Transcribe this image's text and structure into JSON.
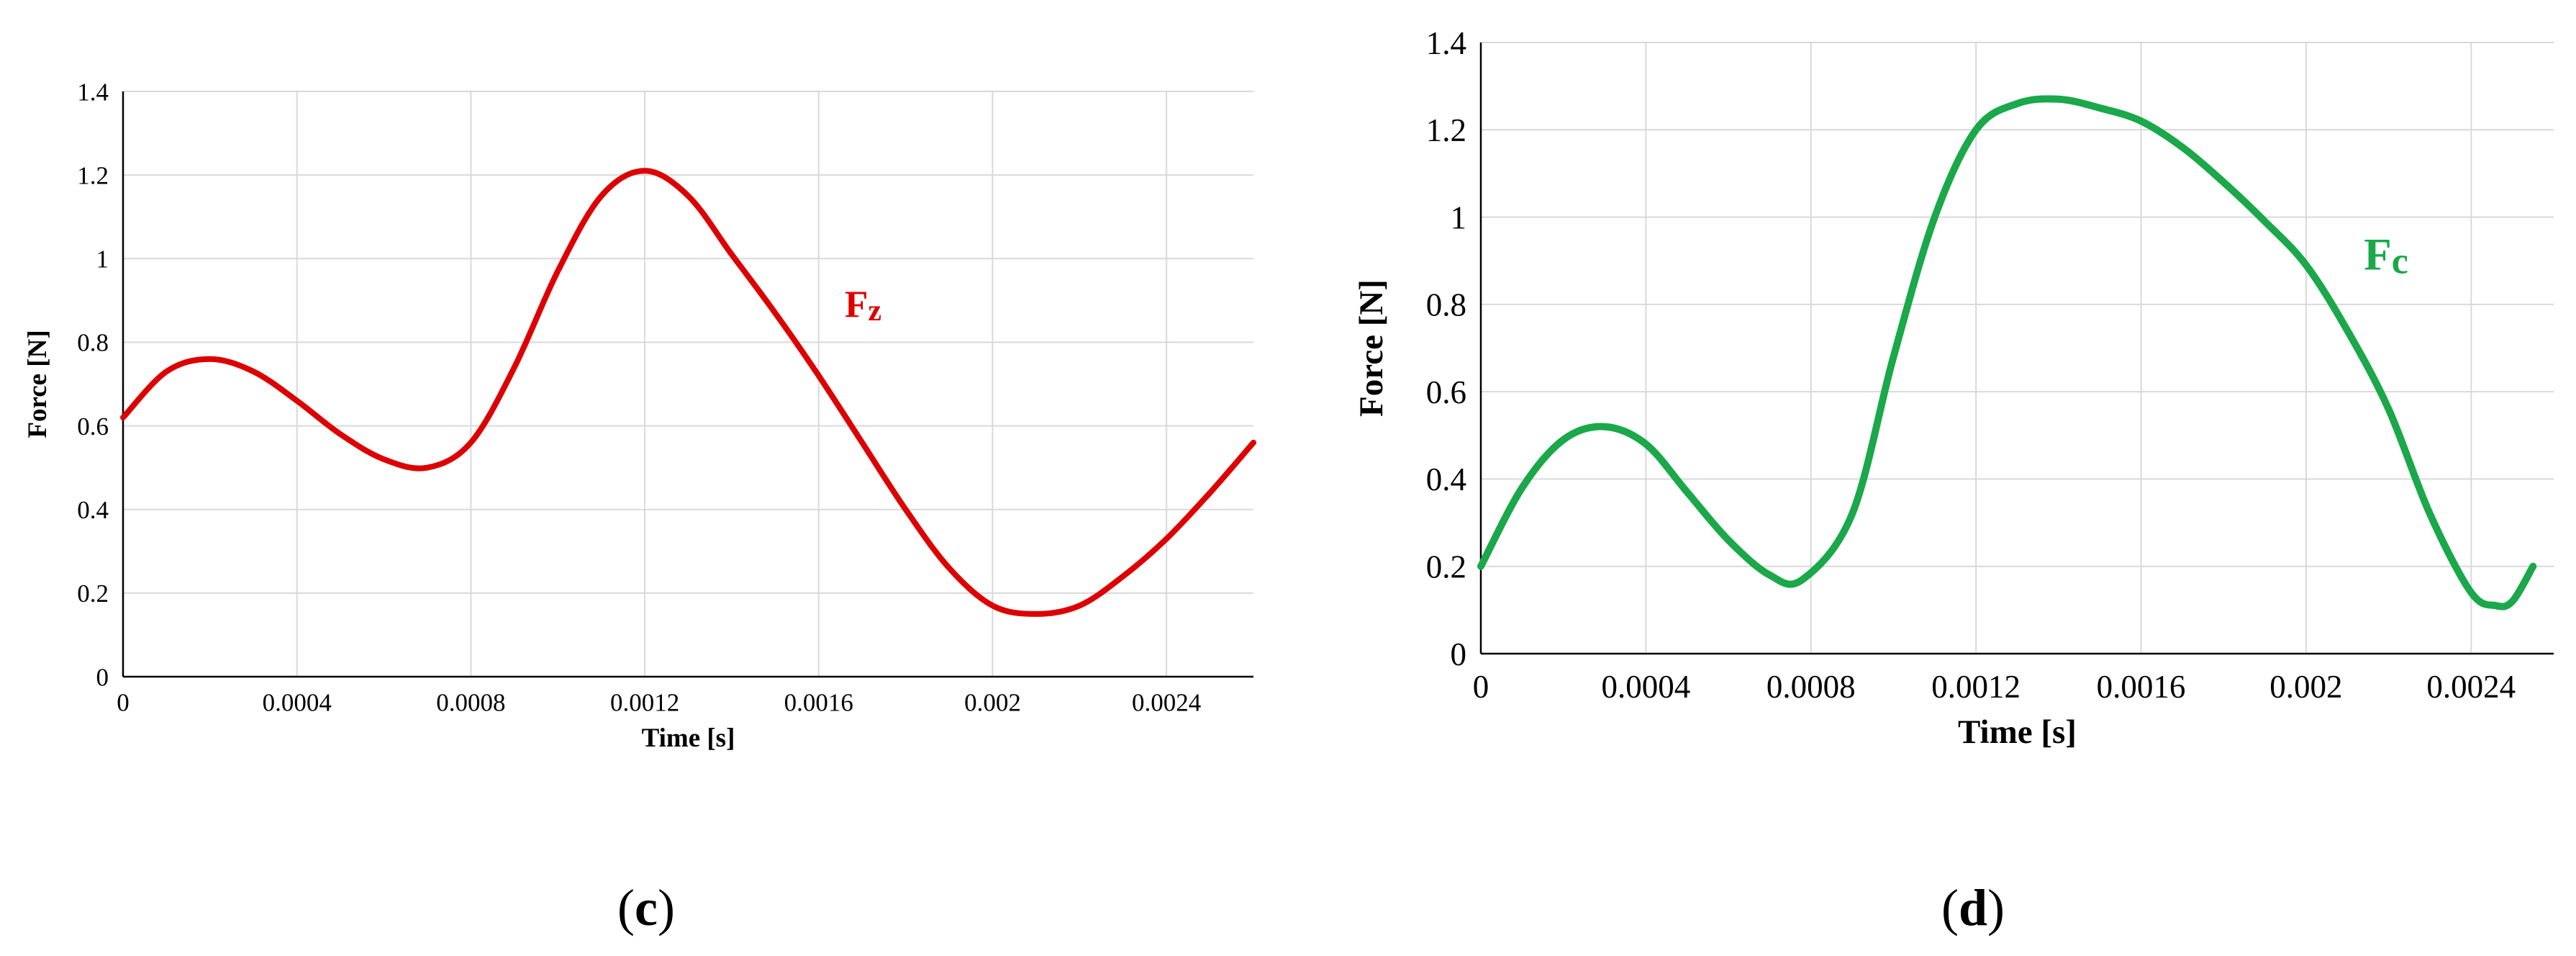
{
  "panels": [
    {
      "id": "c",
      "caption_open": "(",
      "caption_letter": "c",
      "caption_close": ")",
      "chart_data_index": 0
    },
    {
      "id": "d",
      "caption_open": "(",
      "caption_letter": "d",
      "caption_close": ")",
      "chart_data_index": 1
    }
  ],
  "chart_data": [
    {
      "type": "line",
      "title": "",
      "xlabel": "Time [s]",
      "ylabel": "Force [N]",
      "xlim": [
        0,
        0.0026
      ],
      "ylim": [
        0,
        1.4
      ],
      "xticks": [
        0,
        0.0004,
        0.0008,
        0.0012,
        0.0016,
        0.002,
        0.0024
      ],
      "xtick_labels": [
        "0",
        "0.0004",
        "0.0008",
        "0.0012",
        "0.0016",
        "0.002",
        "0.0024"
      ],
      "yticks": [
        0,
        0.2,
        0.4,
        0.6,
        0.8,
        1,
        1.2,
        1.4
      ],
      "ytick_labels": [
        "0",
        "0.2",
        "0.4",
        "0.6",
        "0.8",
        "1",
        "1.2",
        "1.4"
      ],
      "grid": true,
      "series": [
        {
          "name": "Fz",
          "label_main": "F",
          "label_sub": "z",
          "label_at": [
            0.00166,
            0.86
          ],
          "color": "#dd0000",
          "x": [
            0,
            0.0001,
            0.0002,
            0.0003,
            0.0004,
            0.0005,
            0.0006,
            0.0007,
            0.0008,
            0.0009,
            0.001,
            0.0011,
            0.0012,
            0.0013,
            0.0014,
            0.0015,
            0.0016,
            0.0017,
            0.0018,
            0.0019,
            0.002,
            0.0021,
            0.0022,
            0.0023,
            0.0024,
            0.0025,
            0.0026
          ],
          "y": [
            0.62,
            0.73,
            0.76,
            0.73,
            0.66,
            0.58,
            0.52,
            0.5,
            0.56,
            0.74,
            0.97,
            1.15,
            1.21,
            1.15,
            1.01,
            0.87,
            0.72,
            0.56,
            0.4,
            0.26,
            0.17,
            0.15,
            0.17,
            0.24,
            0.33,
            0.44,
            0.56
          ]
        }
      ]
    },
    {
      "type": "line",
      "title": "",
      "xlabel": "Time [s]",
      "ylabel": "Force [N]",
      "xlim": [
        0,
        0.0026
      ],
      "ylim": [
        0,
        1.4
      ],
      "xticks": [
        0,
        0.0004,
        0.0008,
        0.0012,
        0.0016,
        0.002,
        0.0024
      ],
      "xtick_labels": [
        "0",
        "0.0004",
        "0.0008",
        "0.0012",
        "0.0016",
        "0.002",
        "0.0024"
      ],
      "yticks": [
        0,
        0.2,
        0.4,
        0.6,
        0.8,
        1,
        1.2,
        1.4
      ],
      "ytick_labels": [
        "0",
        "0.2",
        "0.4",
        "0.6",
        "0.8",
        "1",
        "1.2",
        "1.4"
      ],
      "grid": true,
      "series": [
        {
          "name": "Fc",
          "label_main": "F",
          "label_sub": "c",
          "label_at": [
            0.00214,
            0.88
          ],
          "color": "#1aa84a",
          "x": [
            0,
            0.0001,
            0.0002,
            0.0003,
            0.0004,
            0.0005,
            0.0006,
            0.0007,
            0.00078,
            0.0009,
            0.001,
            0.0011,
            0.0012,
            0.0013,
            0.0014,
            0.0015,
            0.0016,
            0.0017,
            0.0018,
            0.0019,
            0.002,
            0.0021,
            0.0022,
            0.0023,
            0.0024,
            0.00246,
            0.0025,
            0.00255
          ],
          "y": [
            0.2,
            0.38,
            0.49,
            0.52,
            0.48,
            0.37,
            0.26,
            0.18,
            0.17,
            0.32,
            0.68,
            1.0,
            1.2,
            1.26,
            1.27,
            1.25,
            1.22,
            1.16,
            1.08,
            0.99,
            0.89,
            0.74,
            0.56,
            0.32,
            0.14,
            0.11,
            0.12,
            0.2
          ]
        }
      ]
    }
  ]
}
